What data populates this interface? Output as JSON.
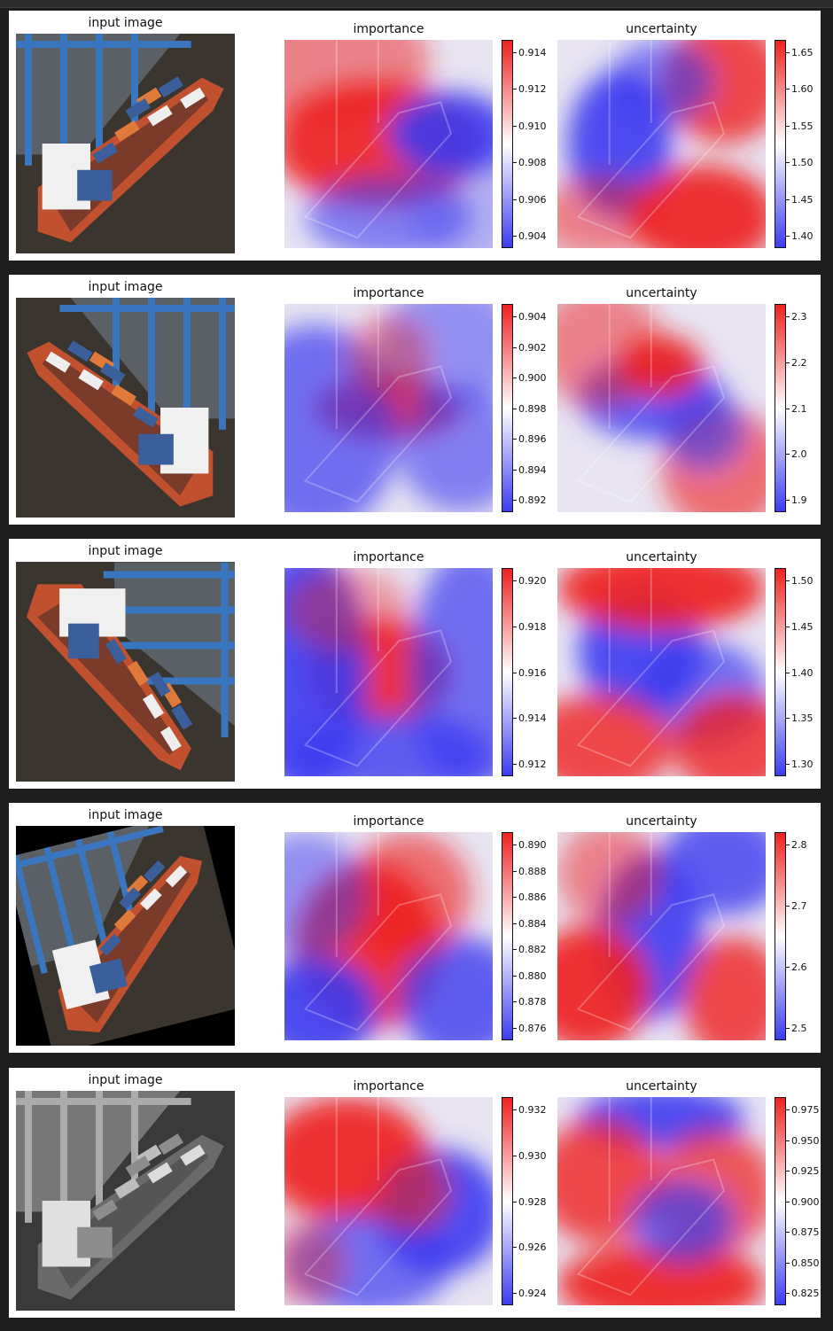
{
  "rows": [
    {
      "variant": "original",
      "input_title": "input image",
      "importance": {
        "title": "importance",
        "ticks": [
          "0.914",
          "0.912",
          "0.910",
          "0.908",
          "0.906",
          "0.904"
        ]
      },
      "uncertainty": {
        "title": "uncertainty",
        "ticks": [
          "1.65",
          "1.60",
          "1.55",
          "1.50",
          "1.45",
          "1.40"
        ]
      }
    },
    {
      "variant": "mirrored",
      "input_title": "input image",
      "importance": {
        "title": "importance",
        "ticks": [
          "0.904",
          "0.902",
          "0.900",
          "0.898",
          "0.896",
          "0.894",
          "0.892"
        ]
      },
      "uncertainty": {
        "title": "uncertainty",
        "ticks": [
          "2.3",
          "2.2",
          "2.1",
          "2.0",
          "1.9"
        ]
      }
    },
    {
      "variant": "rotated-90",
      "input_title": "input image",
      "importance": {
        "title": "importance",
        "ticks": [
          "0.920",
          "0.918",
          "0.916",
          "0.914",
          "0.912"
        ]
      },
      "uncertainty": {
        "title": "uncertainty",
        "ticks": [
          "1.50",
          "1.45",
          "1.40",
          "1.35",
          "1.30"
        ]
      }
    },
    {
      "variant": "rotated-small",
      "input_title": "input image",
      "importance": {
        "title": "importance",
        "ticks": [
          "0.890",
          "0.888",
          "0.886",
          "0.884",
          "0.882",
          "0.880",
          "0.878",
          "0.876"
        ]
      },
      "uncertainty": {
        "title": "uncertainty",
        "ticks": [
          "2.8",
          "2.7",
          "2.6",
          "2.5"
        ]
      }
    },
    {
      "variant": "grayscale",
      "input_title": "input image",
      "importance": {
        "title": "importance",
        "ticks": [
          "0.932",
          "0.930",
          "0.928",
          "0.926",
          "0.924"
        ]
      },
      "uncertainty": {
        "title": "uncertainty",
        "ticks": [
          "0.975",
          "0.950",
          "0.925",
          "0.900",
          "0.875",
          "0.850",
          "0.825"
        ]
      }
    }
  ],
  "colormap": {
    "low": "#3b3bf0",
    "mid": "#ffffff",
    "high": "#ee2020"
  }
}
